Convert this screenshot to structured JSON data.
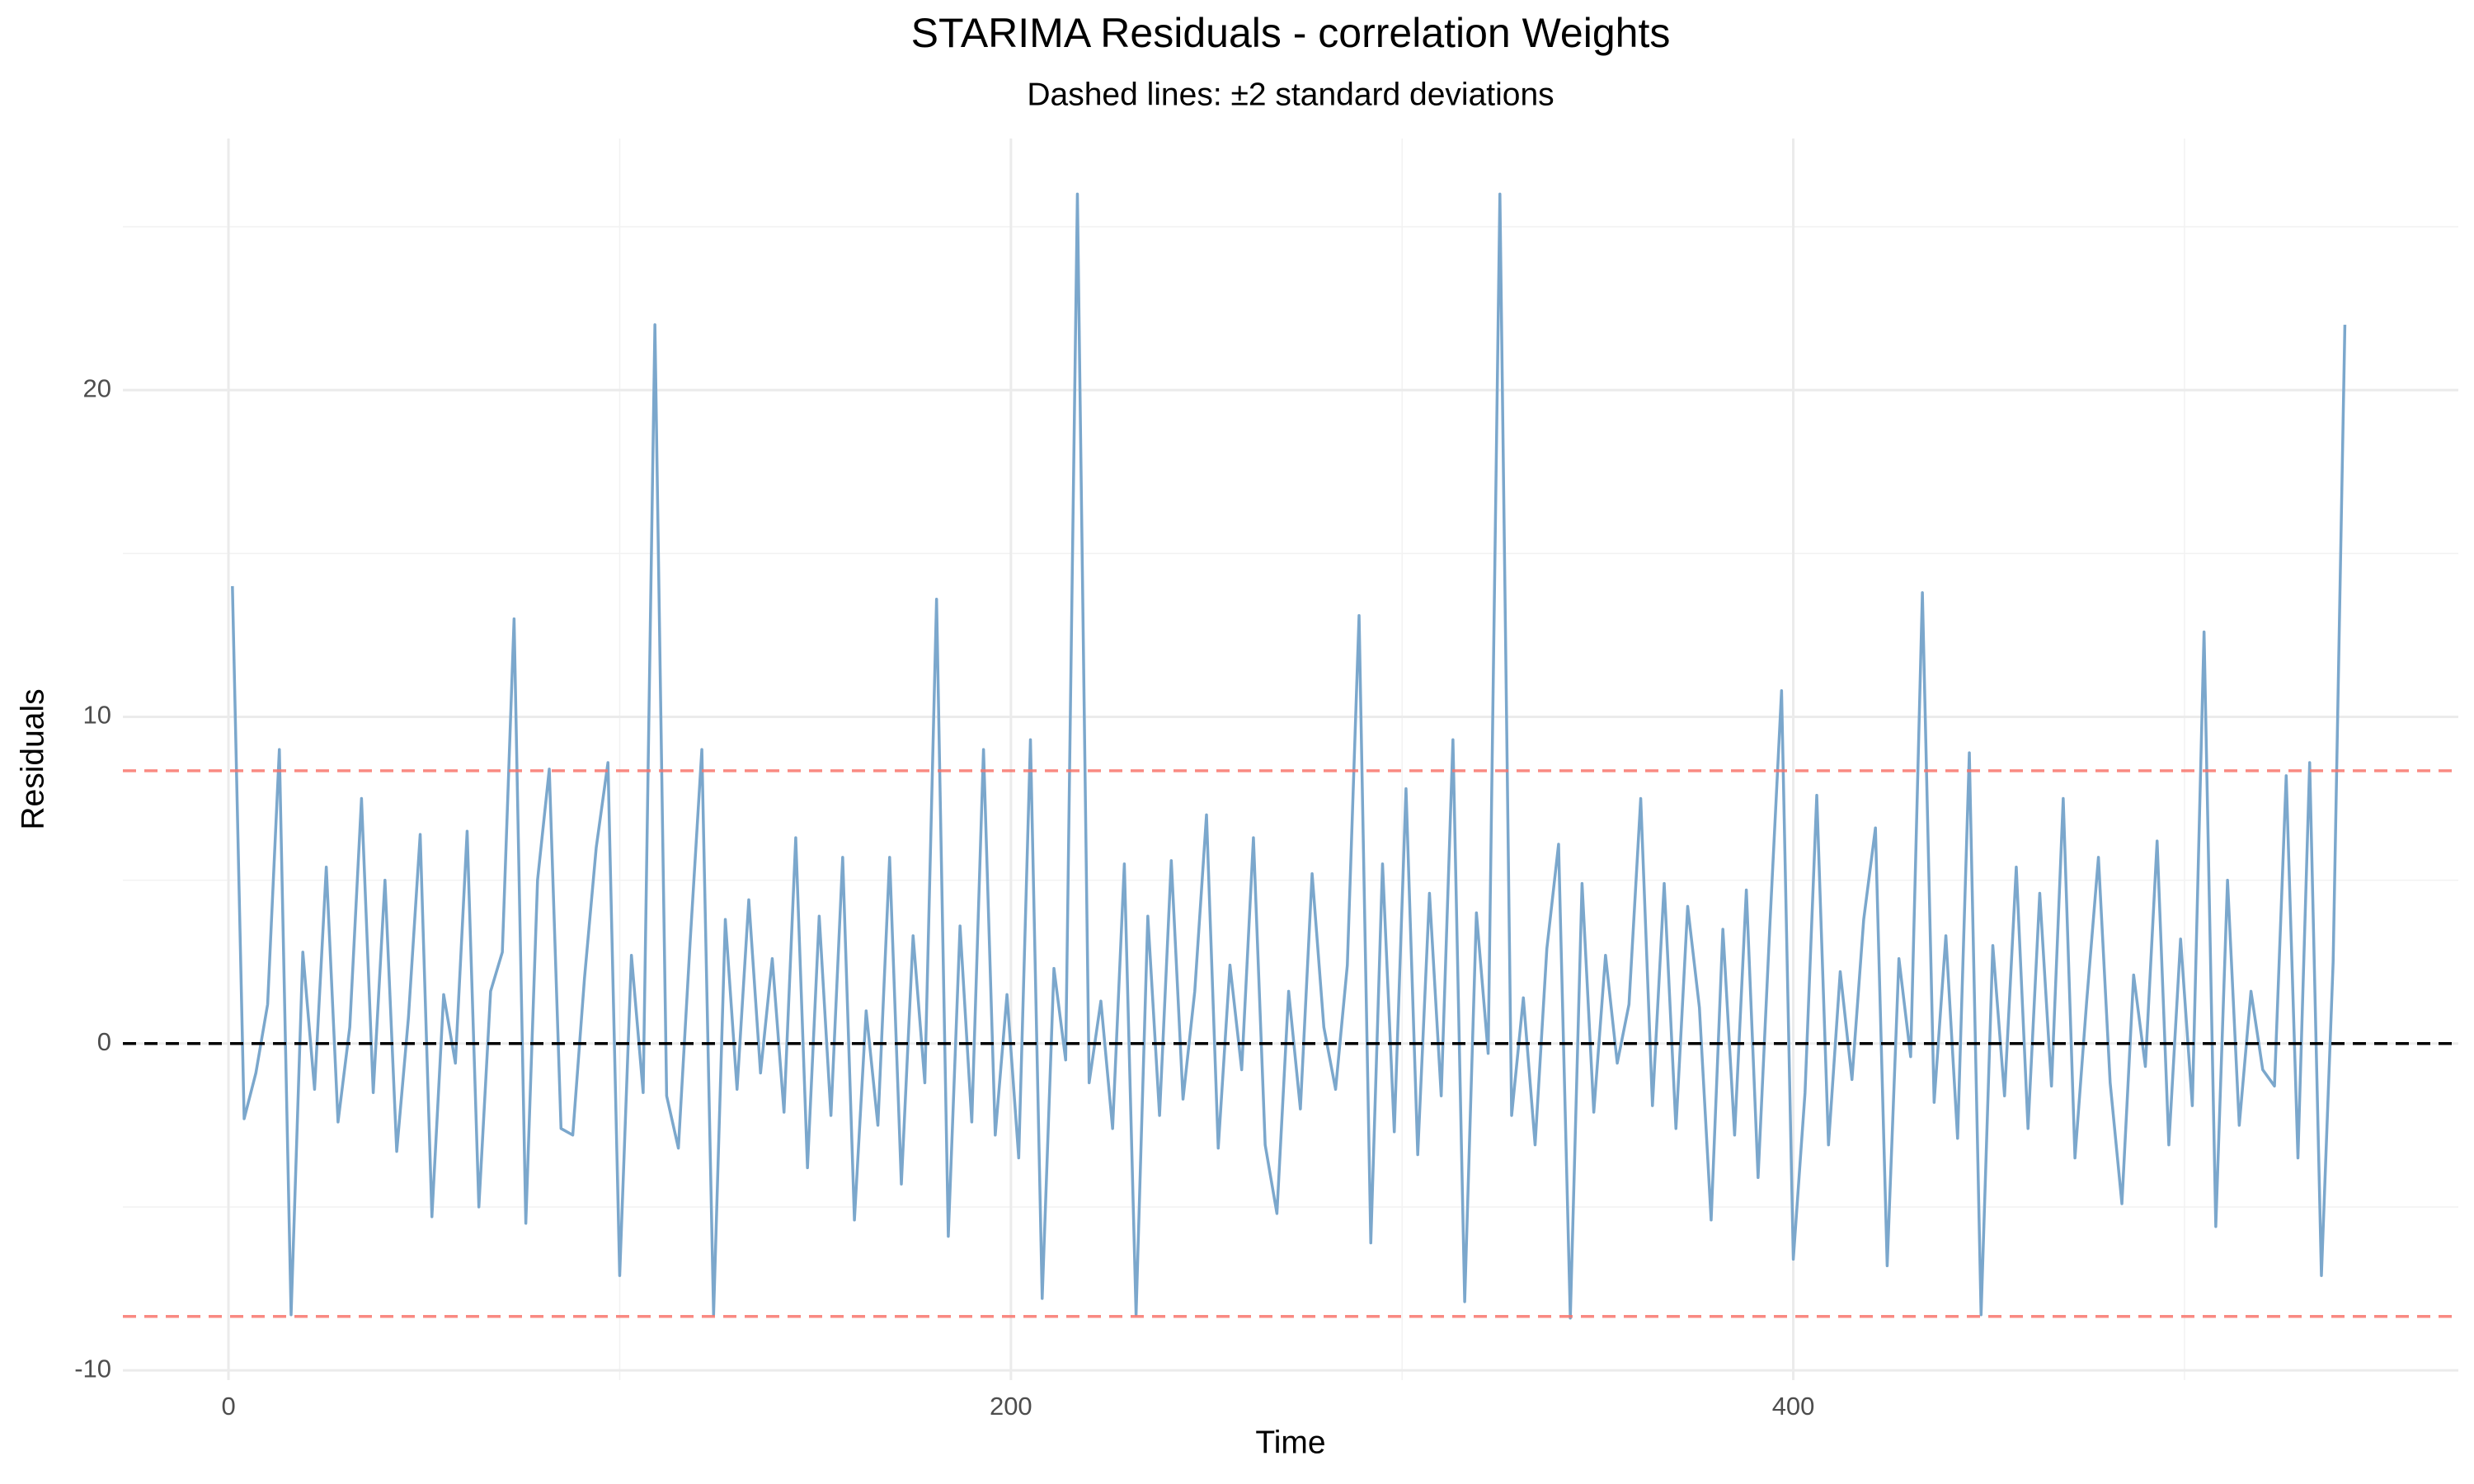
{
  "chart_data": {
    "type": "line",
    "title": "STARIMA Residuals - correlation Weights",
    "subtitle": "Dashed lines: ±2 standard deviations",
    "x_label": "Time",
    "y_label": "Residuals",
    "color": "#7ba7cc",
    "x": [
      1,
      4,
      7,
      10,
      13,
      16,
      19,
      22,
      25,
      28,
      31,
      34,
      37,
      40,
      43,
      46,
      49,
      52,
      55,
      58,
      61,
      64,
      67,
      70,
      73,
      76,
      79,
      82,
      85,
      88,
      91,
      94,
      97,
      100,
      103,
      106,
      109,
      112,
      115,
      118,
      121,
      124,
      127,
      130,
      133,
      136,
      139,
      142,
      145,
      148,
      151,
      154,
      157,
      160,
      163,
      166,
      169,
      172,
      175,
      178,
      181,
      184,
      187,
      190,
      193,
      196,
      199,
      202,
      205,
      208,
      211,
      214,
      217,
      220,
      223,
      226,
      229,
      232,
      235,
      238,
      241,
      244,
      247,
      250,
      253,
      256,
      259,
      262,
      265,
      268,
      271,
      274,
      277,
      280,
      283,
      286,
      289,
      292,
      295,
      298,
      301,
      304,
      307,
      310,
      313,
      316,
      319,
      322,
      325,
      328,
      331,
      334,
      337,
      340,
      343,
      346,
      349,
      352,
      355,
      358,
      361,
      364,
      367,
      370,
      373,
      376,
      379,
      382,
      385,
      388,
      391,
      394,
      397,
      400,
      403,
      406,
      409,
      412,
      415,
      418,
      421,
      424,
      427,
      430,
      433,
      436,
      439,
      442,
      445,
      448,
      451,
      454,
      457,
      460,
      463,
      466,
      469,
      472,
      475,
      478,
      481,
      484,
      487,
      490,
      493,
      496,
      499,
      502,
      505,
      508,
      511,
      514,
      517,
      520,
      523,
      526,
      529,
      532,
      535,
      538,
      541
    ],
    "values": [
      14,
      -2.3,
      -0.9,
      1.2,
      9,
      -8.3,
      2.8,
      -1.4,
      5.4,
      -2.4,
      0.5,
      7.5,
      -1.5,
      5,
      -3.3,
      0.8,
      6.4,
      -5.3,
      1.5,
      -0.6,
      6.5,
      -5,
      1.6,
      2.8,
      13,
      -5.5,
      5,
      8.4,
      -2.6,
      -2.8,
      2,
      6,
      8.6,
      -7.1,
      2.7,
      -1.5,
      22,
      -1.6,
      -3.2,
      3.1,
      9,
      -8.3,
      3.8,
      -1.4,
      4.4,
      -0.9,
      2.6,
      -2.1,
      6.3,
      -3.8,
      3.9,
      -2.2,
      5.7,
      -5.4,
      1,
      -2.5,
      5.7,
      -4.3,
      3.3,
      -1.2,
      13.6,
      -5.9,
      3.6,
      -2.4,
      9,
      -2.8,
      1.5,
      -3.5,
      9.3,
      -7.8,
      2.3,
      -0.5,
      26,
      -1.2,
      1.3,
      -2.6,
      5.5,
      -8.3,
      3.9,
      -2.2,
      5.6,
      -1.7,
      1.6,
      7,
      -3.2,
      2.4,
      -0.8,
      6.3,
      -3.1,
      -5.2,
      1.6,
      -2,
      5.2,
      0.5,
      -1.4,
      2.4,
      13.1,
      -6.1,
      5.5,
      -2.7,
      7.8,
      -3.4,
      4.6,
      -1.6,
      9.3,
      -7.9,
      4,
      -0.3,
      26,
      -2.2,
      1.4,
      -3.1,
      2.9,
      6.1,
      -8.4,
      4.9,
      -2.1,
      2.7,
      -0.6,
      1.2,
      7.5,
      -1.9,
      4.9,
      -2.6,
      4.2,
      1.1,
      -5.4,
      3.5,
      -2.8,
      4.7,
      -4.1,
      3.6,
      10.8,
      -6.6,
      -1.5,
      7.6,
      -3.1,
      2.2,
      -1.1,
      3.8,
      6.6,
      -6.8,
      2.6,
      -0.4,
      13.8,
      -1.8,
      3.3,
      -2.9,
      8.9,
      -8.3,
      3,
      -1.6,
      5.4,
      -2.6,
      4.6,
      -1.3,
      7.5,
      -3.5,
      1.3,
      5.7,
      -1.2,
      -4.9,
      2.1,
      -0.7,
      6.2,
      -3.1,
      3.2,
      -1.9,
      12.6,
      -5.6,
      5,
      -2.5,
      1.6,
      -0.8,
      -1.3,
      8.2,
      -3.5,
      8.6,
      -7.1,
      2.5,
      22
    ],
    "hlines": [
      {
        "value": 0,
        "color": "#000000"
      },
      {
        "value": 8.35,
        "color": "#f8766d"
      },
      {
        "value": -8.35,
        "color": "#f8766d"
      }
    ],
    "xlim": [
      -27,
      570
    ],
    "ylim": [
      -10.3,
      27.7
    ],
    "xticks": [
      0,
      200,
      400
    ],
    "yticks": [
      -10,
      0,
      10,
      20
    ],
    "xminor": [
      100,
      300,
      500
    ],
    "yminor": [
      -5,
      5,
      15,
      25
    ],
    "grid": true
  }
}
